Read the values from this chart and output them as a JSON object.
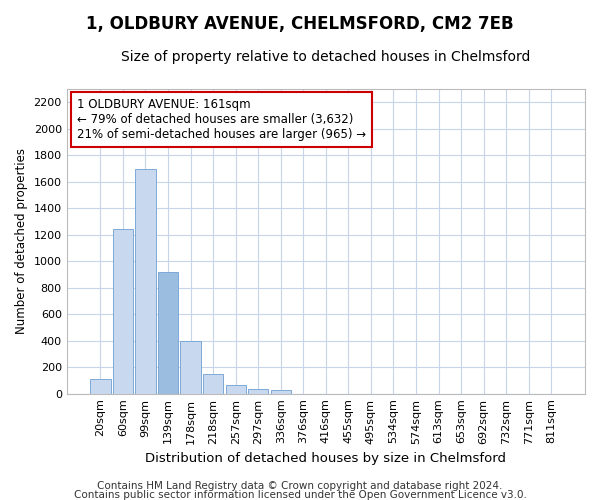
{
  "title": "1, OLDBURY AVENUE, CHELMSFORD, CM2 7EB",
  "subtitle": "Size of property relative to detached houses in Chelmsford",
  "xlabel": "Distribution of detached houses by size in Chelmsford",
  "ylabel": "Number of detached properties",
  "categories": [
    "20sqm",
    "60sqm",
    "99sqm",
    "139sqm",
    "178sqm",
    "218sqm",
    "257sqm",
    "297sqm",
    "336sqm",
    "376sqm",
    "416sqm",
    "455sqm",
    "495sqm",
    "534sqm",
    "574sqm",
    "613sqm",
    "653sqm",
    "692sqm",
    "732sqm",
    "771sqm",
    "811sqm"
  ],
  "values": [
    110,
    1245,
    1695,
    920,
    400,
    150,
    65,
    38,
    25,
    0,
    0,
    0,
    0,
    0,
    0,
    0,
    0,
    0,
    0,
    0,
    0
  ],
  "bar_color": "#c8d9ef",
  "bar_edge_color": "#7da8d8",
  "highlight_bar_index": 3,
  "highlight_bar_color": "#9bbde0",
  "ylim": [
    0,
    2300
  ],
  "yticks": [
    0,
    200,
    400,
    600,
    800,
    1000,
    1200,
    1400,
    1600,
    1800,
    2000,
    2200
  ],
  "annotation_text": "1 OLDBURY AVENUE: 161sqm\n← 79% of detached houses are smaller (3,632)\n21% of semi-detached houses are larger (965) →",
  "annotation_box_color": "#ffffff",
  "annotation_box_edge": "#cc0000",
  "bg_color": "#ffffff",
  "plot_bg_color": "#ffffff",
  "grid_color": "#c8d4e8",
  "footer1": "Contains HM Land Registry data © Crown copyright and database right 2024.",
  "footer2": "Contains public sector information licensed under the Open Government Licence v3.0.",
  "title_fontsize": 12,
  "subtitle_fontsize": 10,
  "xlabel_fontsize": 9.5,
  "ylabel_fontsize": 8.5,
  "tick_fontsize": 8,
  "annotation_fontsize": 8.5,
  "footer_fontsize": 7.5
}
